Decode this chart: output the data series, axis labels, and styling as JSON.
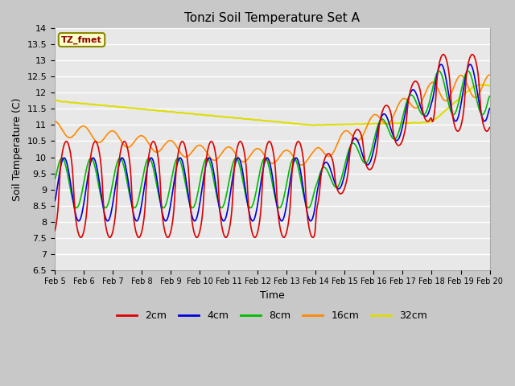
{
  "title": "Tonzi Soil Temperature Set A",
  "xlabel": "Time",
  "ylabel": "Soil Temperature (C)",
  "ylim": [
    6.5,
    14.0
  ],
  "yticks": [
    6.5,
    7.0,
    7.5,
    8.0,
    8.5,
    9.0,
    9.5,
    10.0,
    10.5,
    11.0,
    11.5,
    12.0,
    12.5,
    13.0,
    13.5,
    14.0
  ],
  "legend_label": "TZ_fmet",
  "series": {
    "2cm": {
      "color": "#dd0000",
      "linewidth": 1.2
    },
    "4cm": {
      "color": "#0000dd",
      "linewidth": 1.2
    },
    "8cm": {
      "color": "#00bb00",
      "linewidth": 1.2
    },
    "16cm": {
      "color": "#ff8800",
      "linewidth": 1.2
    },
    "32cm": {
      "color": "#dddd00",
      "linewidth": 1.5
    }
  },
  "xtick_labels": [
    "Feb 5",
    "Feb 6",
    "Feb 7",
    "Feb 8",
    "Feb 9",
    "Feb 10",
    "Feb 11",
    "Feb 12",
    "Feb 13",
    "Feb 14",
    "Feb 15",
    "Feb 16",
    "Feb 17",
    "Feb 18",
    "Feb 19",
    "Feb 20"
  ],
  "n_days": 15,
  "points_per_day": 48
}
